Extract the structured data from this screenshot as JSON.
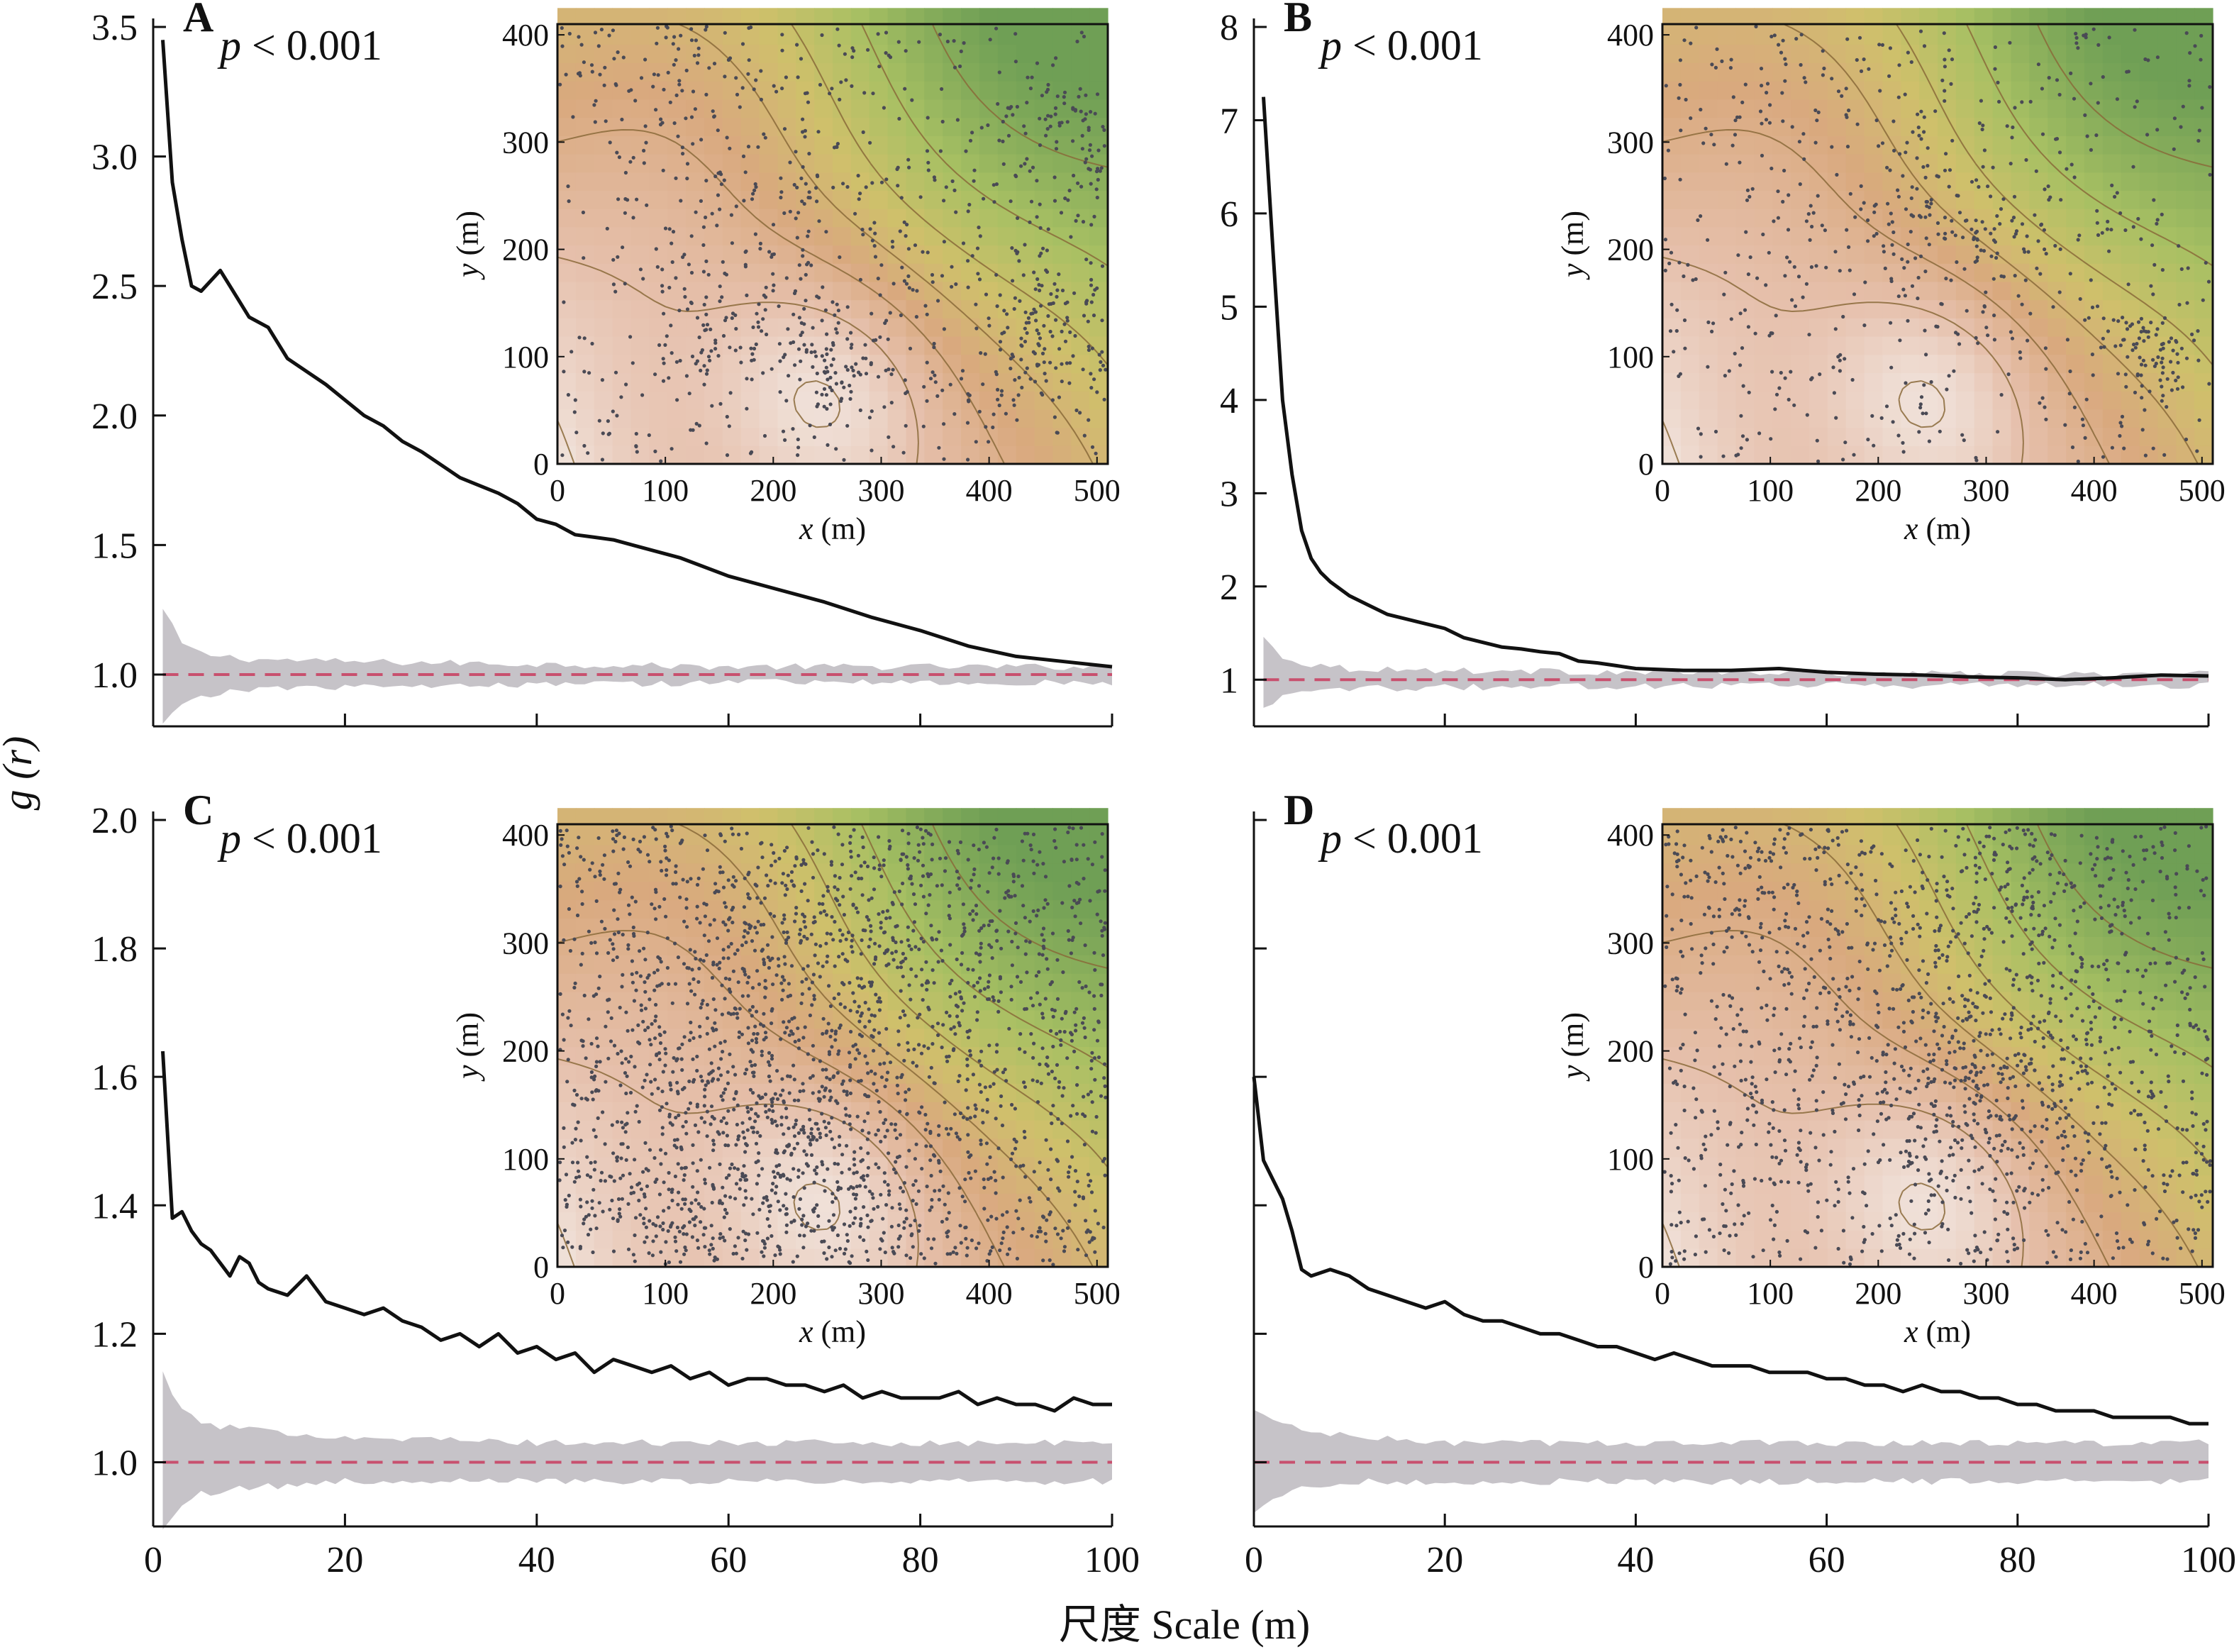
{
  "figure": {
    "ylabel": "g (r)",
    "xlabel": "尺度 Scale (m)"
  },
  "inset_axes": {
    "xlabel": "x (m)",
    "ylabel": "y (m)",
    "xticks": [
      0,
      100,
      200,
      300,
      400,
      500
    ],
    "yticks": [
      0,
      100,
      200,
      300,
      400
    ]
  },
  "colors": {
    "observed_line": "#111111",
    "envelope": "#c6c3c8",
    "expected_line": "#c8506e",
    "terrain_low": "#f4f1ee",
    "terrain_mid": "#d8b27f",
    "terrain_high": "#6f9f55",
    "contour": "#8a6a3a",
    "points": "#4a4a55"
  },
  "chart_data": [
    {
      "panel": "A",
      "type": "line",
      "annotation": "p < 0.001",
      "xlim": [
        0,
        100
      ],
      "ylim": [
        0.8,
        3.5
      ],
      "yticks": [
        "1.0",
        "1.5",
        "2.0",
        "2.5",
        "3.0",
        "3.5"
      ],
      "xticks": [],
      "series": [
        {
          "x": [
            1,
            2,
            3,
            4,
            5,
            6,
            7,
            8,
            9,
            10,
            12,
            14,
            16,
            18,
            20,
            22,
            24,
            26,
            28,
            30,
            32,
            34,
            36,
            38,
            40,
            42,
            44,
            46,
            48,
            50,
            55,
            60,
            65,
            70,
            75,
            80,
            85,
            90,
            95,
            100
          ],
          "y": [
            3.45,
            2.9,
            2.68,
            2.5,
            2.48,
            2.52,
            2.56,
            2.5,
            2.44,
            2.38,
            2.34,
            2.22,
            2.17,
            2.12,
            2.06,
            2.0,
            1.96,
            1.9,
            1.86,
            1.81,
            1.76,
            1.73,
            1.7,
            1.66,
            1.6,
            1.58,
            1.54,
            1.53,
            1.52,
            1.5,
            1.45,
            1.38,
            1.33,
            1.28,
            1.22,
            1.17,
            1.11,
            1.07,
            1.05,
            1.03
          ]
        }
      ],
      "expected": 1.0,
      "envelope": {
        "x": [
          1,
          3,
          5,
          10,
          20,
          40,
          60,
          80,
          100
        ],
        "upper": [
          1.25,
          1.12,
          1.08,
          1.06,
          1.05,
          1.04,
          1.03,
          1.03,
          1.03
        ],
        "lower": [
          0.8,
          0.88,
          0.92,
          0.94,
          0.95,
          0.96,
          0.97,
          0.97,
          0.97
        ]
      },
      "inset": {
        "point_clusters": [
          [
            255,
            90,
            30
          ],
          [
            230,
            250,
            60
          ],
          [
            470,
            140,
            50
          ],
          [
            480,
            300,
            40
          ],
          [
            100,
            380,
            40
          ],
          [
            150,
            120,
            40
          ],
          [
            450,
            110,
            40
          ]
        ],
        "n_points": 1100,
        "hotspot_density": 0.55
      }
    },
    {
      "panel": "B",
      "type": "line",
      "annotation": "p < 0.001",
      "xlim": [
        0,
        100
      ],
      "ylim": [
        0.5,
        8
      ],
      "yticks": [
        "1",
        "2",
        "3",
        "4",
        "5",
        "6",
        "7",
        "8"
      ],
      "xticks": [],
      "series": [
        {
          "x": [
            1,
            2,
            3,
            4,
            5,
            6,
            7,
            8,
            10,
            12,
            14,
            16,
            18,
            20,
            22,
            24,
            26,
            28,
            30,
            32,
            34,
            36,
            38,
            40,
            45,
            50,
            55,
            60,
            65,
            70,
            75,
            80,
            85,
            90,
            95,
            100
          ],
          "y": [
            7.25,
            5.6,
            4.0,
            3.2,
            2.6,
            2.3,
            2.15,
            2.05,
            1.9,
            1.8,
            1.7,
            1.65,
            1.6,
            1.55,
            1.45,
            1.4,
            1.35,
            1.33,
            1.3,
            1.28,
            1.2,
            1.18,
            1.15,
            1.12,
            1.1,
            1.1,
            1.12,
            1.08,
            1.06,
            1.05,
            1.03,
            1.02,
            1.0,
            1.02,
            1.05,
            1.04
          ]
        }
      ],
      "expected": 1.0,
      "envelope": {
        "x": [
          1,
          3,
          5,
          10,
          20,
          40,
          60,
          80,
          100
        ],
        "upper": [
          1.45,
          1.25,
          1.18,
          1.12,
          1.1,
          1.08,
          1.07,
          1.06,
          1.06
        ],
        "lower": [
          0.7,
          0.82,
          0.86,
          0.9,
          0.92,
          0.93,
          0.94,
          0.94,
          0.94
        ]
      },
      "inset": {
        "point_clusters": [
          [
            230,
            230,
            40
          ],
          [
            310,
            210,
            40
          ],
          [
            450,
            110,
            20
          ],
          [
            120,
            370,
            60
          ]
        ],
        "n_points": 750,
        "hotspot_density": 0.25
      }
    },
    {
      "panel": "C",
      "type": "line",
      "annotation": "p < 0.001",
      "xlim": [
        0,
        100
      ],
      "ylim": [
        0.9,
        2.0
      ],
      "yticks": [
        "1.0",
        "1.2",
        "1.4",
        "1.6",
        "1.8",
        "2.0"
      ],
      "xticks": [
        "0",
        "20",
        "40",
        "60",
        "80",
        "100"
      ],
      "series": [
        {
          "x": [
            1,
            2,
            3,
            4,
            5,
            6,
            7,
            8,
            9,
            10,
            11,
            12,
            14,
            16,
            18,
            20,
            22,
            24,
            26,
            28,
            30,
            32,
            34,
            36,
            38,
            40,
            42,
            44,
            46,
            48,
            50,
            52,
            54,
            56,
            58,
            60,
            62,
            64,
            66,
            68,
            70,
            72,
            74,
            76,
            78,
            80,
            82,
            84,
            86,
            88,
            90,
            92,
            94,
            96,
            98,
            100
          ],
          "y": [
            1.64,
            1.38,
            1.39,
            1.36,
            1.34,
            1.33,
            1.31,
            1.29,
            1.32,
            1.31,
            1.28,
            1.27,
            1.26,
            1.29,
            1.25,
            1.24,
            1.23,
            1.24,
            1.22,
            1.21,
            1.19,
            1.2,
            1.18,
            1.2,
            1.17,
            1.18,
            1.16,
            1.17,
            1.14,
            1.16,
            1.15,
            1.14,
            1.15,
            1.13,
            1.14,
            1.12,
            1.13,
            1.13,
            1.12,
            1.12,
            1.11,
            1.12,
            1.1,
            1.11,
            1.1,
            1.1,
            1.1,
            1.11,
            1.09,
            1.1,
            1.09,
            1.09,
            1.08,
            1.1,
            1.09,
            1.09
          ]
        }
      ],
      "expected": 1.0,
      "envelope": {
        "x": [
          1,
          3,
          5,
          10,
          20,
          40,
          60,
          80,
          100
        ],
        "upper": [
          1.14,
          1.08,
          1.06,
          1.05,
          1.04,
          1.03,
          1.03,
          1.03,
          1.03
        ],
        "lower": [
          0.9,
          0.93,
          0.95,
          0.96,
          0.97,
          0.97,
          0.97,
          0.97,
          0.97
        ]
      },
      "inset": {
        "point_clusters": [
          [
            240,
            100,
            60
          ],
          [
            150,
            250,
            80
          ],
          [
            120,
            80,
            70
          ],
          [
            300,
            300,
            90
          ]
        ],
        "n_points": 2400,
        "hotspot_density": 0.3
      }
    },
    {
      "panel": "D",
      "type": "line",
      "annotation": "p < 0.001",
      "xlim": [
        0,
        100
      ],
      "ylim": [
        0.9,
        2.0
      ],
      "yticks": [
        "",
        "",
        "",
        "",
        "",
        ""
      ],
      "xticks": [
        "0",
        "20",
        "40",
        "60",
        "80",
        "100"
      ],
      "series": [
        {
          "x": [
            0,
            1,
            2,
            3,
            4,
            5,
            6,
            8,
            10,
            12,
            14,
            16,
            18,
            20,
            22,
            24,
            26,
            28,
            30,
            32,
            34,
            36,
            38,
            40,
            42,
            44,
            46,
            48,
            50,
            52,
            54,
            56,
            58,
            60,
            62,
            64,
            66,
            68,
            70,
            72,
            74,
            76,
            78,
            80,
            82,
            84,
            86,
            88,
            90,
            92,
            94,
            96,
            98,
            100
          ],
          "y": [
            1.6,
            1.47,
            1.44,
            1.41,
            1.36,
            1.3,
            1.29,
            1.3,
            1.29,
            1.27,
            1.26,
            1.25,
            1.24,
            1.25,
            1.23,
            1.22,
            1.22,
            1.21,
            1.2,
            1.2,
            1.19,
            1.18,
            1.18,
            1.17,
            1.16,
            1.17,
            1.16,
            1.15,
            1.15,
            1.15,
            1.14,
            1.14,
            1.14,
            1.13,
            1.13,
            1.12,
            1.12,
            1.11,
            1.12,
            1.11,
            1.11,
            1.1,
            1.1,
            1.09,
            1.09,
            1.08,
            1.08,
            1.08,
            1.07,
            1.07,
            1.07,
            1.07,
            1.06,
            1.06
          ]
        }
      ],
      "expected": 1.0,
      "envelope": {
        "x": [
          0,
          3,
          5,
          10,
          20,
          40,
          60,
          80,
          100
        ],
        "upper": [
          1.08,
          1.06,
          1.05,
          1.04,
          1.03,
          1.03,
          1.03,
          1.03,
          1.03
        ],
        "lower": [
          0.92,
          0.95,
          0.96,
          0.97,
          0.97,
          0.97,
          0.97,
          0.97,
          0.97
        ]
      },
      "inset": {
        "point_clusters": [
          [
            270,
            170,
            50
          ],
          [
            340,
            180,
            50
          ],
          [
            80,
            360,
            60
          ],
          [
            330,
            350,
            50
          ]
        ],
        "n_points": 1700,
        "hotspot_density": 0.3
      }
    }
  ]
}
